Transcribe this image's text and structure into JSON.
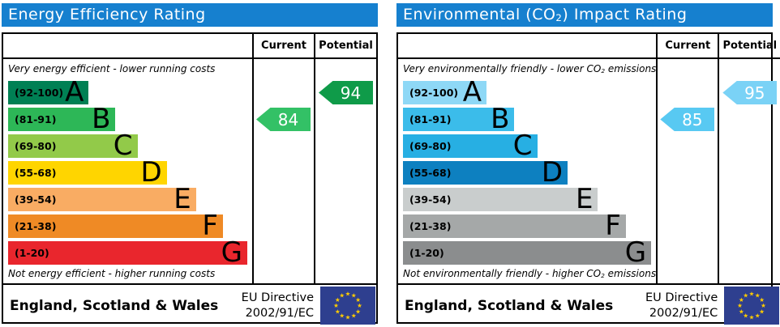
{
  "colors": {
    "title_bar": "#1680cf",
    "eu_flag_blue": "#2e3f8f",
    "eu_star_yellow": "#ffcc00"
  },
  "left": {
    "title_parts": [
      "Energy Efficiency Rating",
      "",
      ""
    ],
    "header": {
      "current": "Current",
      "potential": "Potential"
    },
    "top_note_parts": [
      "Very energy efficient - lower running costs",
      "",
      ""
    ],
    "bottom_note_parts": [
      "Not energy efficient - higher running costs",
      "",
      ""
    ],
    "bands": [
      {
        "range": "(92-100)",
        "letter": "A",
        "color": "#008054",
        "width_pct": 33
      },
      {
        "range": "(81-91)",
        "letter": "B",
        "color": "#2db757",
        "width_pct": 44
      },
      {
        "range": "(69-80)",
        "letter": "C",
        "color": "#92ca49",
        "width_pct": 53
      },
      {
        "range": "(55-68)",
        "letter": "D",
        "color": "#ffd500",
        "width_pct": 65
      },
      {
        "range": "(39-54)",
        "letter": "E",
        "color": "#f9ac63",
        "width_pct": 77
      },
      {
        "range": "(21-38)",
        "letter": "F",
        "color": "#ef8a25",
        "width_pct": 88
      },
      {
        "range": "(1-20)",
        "letter": "G",
        "color": "#e9262d",
        "width_pct": 98
      }
    ],
    "current": {
      "value": "84",
      "band_index": 1,
      "color": "#33c166"
    },
    "potential": {
      "value": "94",
      "band_index": 0,
      "color": "#0f9b49"
    },
    "footer": {
      "region": "England, Scotland & Wales",
      "directive": [
        "EU Directive",
        "2002/91/EC"
      ]
    }
  },
  "right": {
    "title_parts": [
      "Environmental (CO",
      "2",
      ") Impact Rating"
    ],
    "header": {
      "current": "Current",
      "potential": "Potential"
    },
    "top_note_parts": [
      "Very environmentally friendly - lower CO",
      "2",
      " emissions"
    ],
    "bottom_note_parts": [
      "Not environmentally friendly - higher CO",
      "2",
      " emissions"
    ],
    "bands": [
      {
        "range": "(92-100)",
        "letter": "A",
        "color": "#8ed8f6",
        "width_pct": 33
      },
      {
        "range": "(81-91)",
        "letter": "B",
        "color": "#3bbcea",
        "width_pct": 44
      },
      {
        "range": "(69-80)",
        "letter": "C",
        "color": "#27afe3",
        "width_pct": 53
      },
      {
        "range": "(55-68)",
        "letter": "D",
        "color": "#0d80c0",
        "width_pct": 65
      },
      {
        "range": "(39-54)",
        "letter": "E",
        "color": "#c9cdcd",
        "width_pct": 77
      },
      {
        "range": "(21-38)",
        "letter": "F",
        "color": "#a5a8a8",
        "width_pct": 88
      },
      {
        "range": "(1-20)",
        "letter": "G",
        "color": "#8b8d8e",
        "width_pct": 98
      }
    ],
    "current": {
      "value": "85",
      "band_index": 1,
      "color": "#58c9f2"
    },
    "potential": {
      "value": "95",
      "band_index": 0,
      "color": "#7ad2f6"
    },
    "footer": {
      "region": "England, Scotland & Wales",
      "directive": [
        "EU Directive",
        "2002/91/EC"
      ]
    }
  },
  "chart_data": [
    {
      "type": "bar",
      "title": "Energy Efficiency Rating",
      "categories": [
        "A (92-100)",
        "B (81-91)",
        "C (69-80)",
        "D (55-68)",
        "E (39-54)",
        "F (21-38)",
        "G (1-20)"
      ],
      "band_bar_lengths_pct": [
        33,
        44,
        53,
        65,
        77,
        88,
        98
      ],
      "band_colors": [
        "#008054",
        "#2db757",
        "#92ca49",
        "#ffd500",
        "#f9ac63",
        "#ef8a25",
        "#e9262d"
      ],
      "current": 84,
      "current_band": "B",
      "potential": 94,
      "potential_band": "A",
      "xlim": [
        1,
        100
      ],
      "annotations": [
        "Very energy efficient - lower running costs",
        "Not energy efficient - higher running costs"
      ],
      "footer": "England, Scotland & Wales | EU Directive 2002/91/EC"
    },
    {
      "type": "bar",
      "title": "Environmental (CO2) Impact Rating",
      "categories": [
        "A (92-100)",
        "B (81-91)",
        "C (69-80)",
        "D (55-68)",
        "E (39-54)",
        "F (21-38)",
        "G (1-20)"
      ],
      "band_bar_lengths_pct": [
        33,
        44,
        53,
        65,
        77,
        88,
        98
      ],
      "band_colors": [
        "#8ed8f6",
        "#3bbcea",
        "#27afe3",
        "#0d80c0",
        "#c9cdcd",
        "#a5a8a8",
        "#8b8d8e"
      ],
      "current": 85,
      "current_band": "B",
      "potential": 95,
      "potential_band": "A",
      "xlim": [
        1,
        100
      ],
      "annotations": [
        "Very environmentally friendly - lower CO2 emissions",
        "Not environmentally friendly - higher CO2 emissions"
      ],
      "footer": "England, Scotland & Wales | EU Directive 2002/91/EC"
    }
  ]
}
